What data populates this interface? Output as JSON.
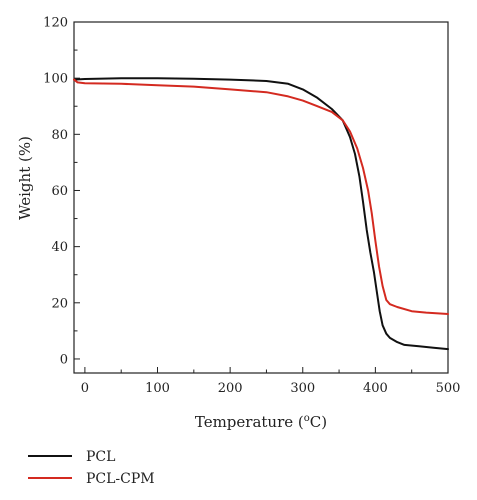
{
  "chart_data": {
    "type": "line",
    "title": "",
    "xlabel": "Temperature (",
    "xlabel_sup": "o",
    "xlabel_suffix": "C)",
    "ylabel": "Weight (%)",
    "xlim": [
      -15,
      500
    ],
    "ylim": [
      -5,
      120
    ],
    "xticks": [
      0,
      100,
      200,
      300,
      400,
      500
    ],
    "yticks": [
      0,
      20,
      40,
      60,
      80,
      100,
      120
    ],
    "grid": false,
    "legend_position": "bottom-left",
    "series": [
      {
        "name": "PCL",
        "color": "#111111",
        "x": [
          -15,
          0,
          50,
          100,
          150,
          200,
          250,
          280,
          300,
          320,
          340,
          355,
          365,
          372,
          378,
          383,
          388,
          393,
          398,
          402,
          406,
          410,
          415,
          420,
          430,
          440,
          460,
          480,
          500
        ],
        "y": [
          99.5,
          99.7,
          100,
          100,
          99.8,
          99.5,
          99,
          98,
          96,
          93,
          89,
          85,
          79,
          73,
          65,
          56,
          46,
          38,
          31,
          24,
          17,
          12,
          9,
          7.5,
          6,
          5,
          4.5,
          4,
          3.5
        ]
      },
      {
        "name": "PCL-CPM",
        "color": "#d42a20",
        "x": [
          -15,
          -10,
          0,
          50,
          100,
          150,
          200,
          250,
          280,
          300,
          320,
          340,
          355,
          365,
          375,
          383,
          390,
          395,
          400,
          405,
          410,
          415,
          420,
          430,
          450,
          470,
          500
        ],
        "y": [
          99.5,
          98.5,
          98.2,
          98,
          97.5,
          97,
          96,
          95,
          93.5,
          92,
          90,
          88,
          85,
          81,
          75,
          68,
          60,
          52,
          42,
          33,
          26,
          21,
          19.5,
          18.5,
          17,
          16.5,
          16
        ]
      }
    ]
  }
}
